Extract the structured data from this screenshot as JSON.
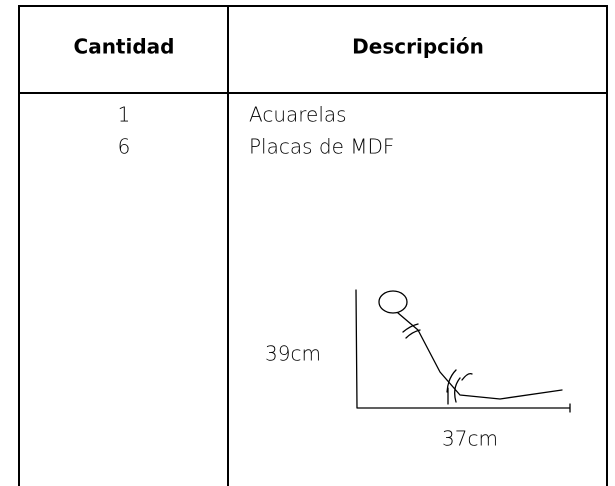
{
  "table": {
    "headers": [
      "Cantidad",
      "Descripción"
    ],
    "rows": [
      [
        "1",
        "Acuarelas"
      ],
      [
        "6",
        "Placas de MDF"
      ]
    ]
  },
  "sketch": {
    "height_label": "39cm",
    "width_label": "37cm"
  }
}
